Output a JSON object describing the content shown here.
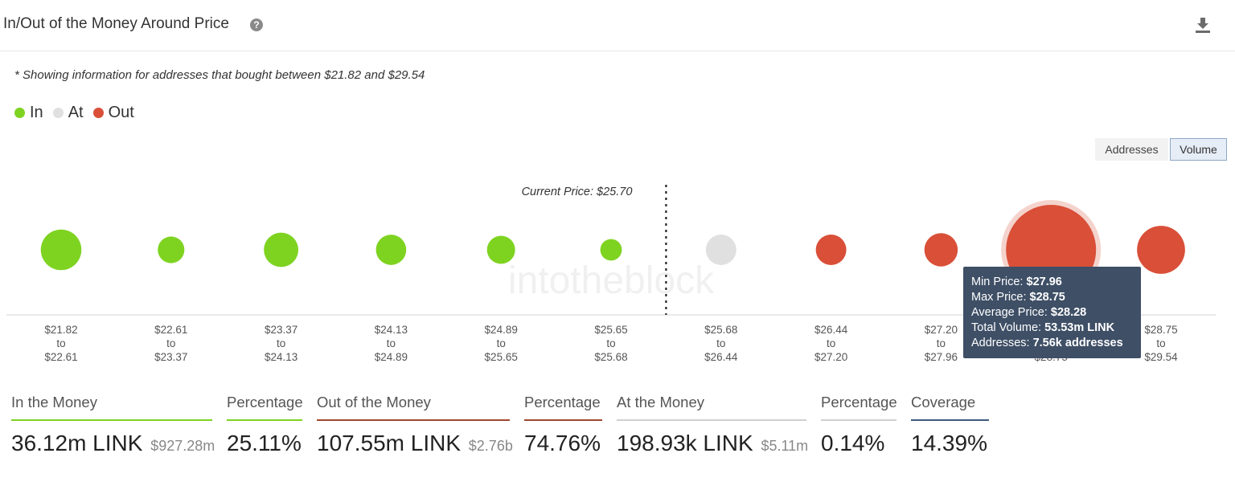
{
  "header": {
    "title": "In/Out of the Money Around Price",
    "help_icon": "question-circle-icon",
    "download_icon": "download-icon"
  },
  "note": "* Showing information for addresses that bought between $21.82 and $29.54",
  "legend": [
    {
      "label": "In",
      "color": "#7ed321"
    },
    {
      "label": "At",
      "color": "#e0e0e0"
    },
    {
      "label": "Out",
      "color": "#d94f38"
    }
  ],
  "toggles": {
    "addresses": "Addresses",
    "volume": "Volume",
    "selected": "Volume"
  },
  "chart_data": {
    "type": "scatter",
    "current_price_label": "Current Price: $25.70",
    "watermark": "intotheblock",
    "bins": [
      {
        "from": "$21.82",
        "sep": "to",
        "to": "$22.61",
        "status": "In",
        "volume_m": 8.6
      },
      {
        "from": "$22.61",
        "sep": "to",
        "to": "$23.37",
        "status": "In",
        "volume_m": 2.3
      },
      {
        "from": "$23.37",
        "sep": "to",
        "to": "$24.13",
        "status": "In",
        "volume_m": 5.4
      },
      {
        "from": "$24.13",
        "sep": "to",
        "to": "$24.89",
        "status": "In",
        "volume_m": 3.6
      },
      {
        "from": "$24.89",
        "sep": "to",
        "to": "$25.65",
        "status": "In",
        "volume_m": 2.8
      },
      {
        "from": "$25.65",
        "sep": "to",
        "to": "$25.68",
        "status": "In",
        "volume_m": 0.9
      },
      {
        "from": "$25.68",
        "sep": "to",
        "to": "$26.44",
        "status": "At",
        "volume_m": 3.7
      },
      {
        "from": "$26.44",
        "sep": "to",
        "to": "$27.20",
        "status": "Out",
        "volume_m": 3.7
      },
      {
        "from": "$27.20",
        "sep": "to",
        "to": "$27.96",
        "status": "Out",
        "volume_m": 4.9
      },
      {
        "from": "$27.96",
        "sep": "to",
        "to": "$28.75",
        "status": "Out",
        "volume_m": 53.53,
        "highlighted": true
      },
      {
        "from": "$28.75",
        "sep": "to",
        "to": "$29.54",
        "status": "Out",
        "volume_m": 13.2
      }
    ]
  },
  "tooltip": {
    "lines": [
      {
        "label": "Min Price: ",
        "value": "$27.96"
      },
      {
        "label": "Max Price: ",
        "value": "$28.75"
      },
      {
        "label": "Average Price: ",
        "value": "$28.28"
      },
      {
        "label": "Total Volume: ",
        "value": "53.53m LINK"
      },
      {
        "label": "Addresses: ",
        "value": "7.56k addresses"
      }
    ]
  },
  "stats": {
    "in_money": {
      "label": "In the Money",
      "value": "36.12m LINK",
      "sub": "$927.28m",
      "color": "#7ed321"
    },
    "in_pct": {
      "label": "Percentage",
      "value": "25.11%",
      "color": "#7ed321"
    },
    "out_money": {
      "label": "Out of the Money",
      "value": "107.55m LINK",
      "sub": "$2.76b",
      "color": "#a0462f"
    },
    "out_pct": {
      "label": "Percentage",
      "value": "74.76%",
      "color": "#a0462f"
    },
    "at_money": {
      "label": "At the Money",
      "value": "198.93k LINK",
      "sub": "$5.11m",
      "color": "#cfcfcf"
    },
    "at_pct": {
      "label": "Percentage",
      "value": "0.14%",
      "color": "#cfcfcf"
    },
    "coverage": {
      "label": "Coverage",
      "value": "14.39%",
      "color": "#3e5a7e"
    }
  }
}
